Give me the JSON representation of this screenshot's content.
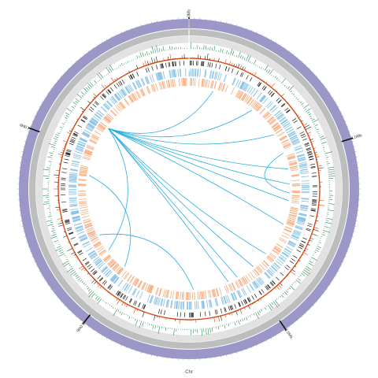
{
  "figure": {
    "type": "circos-genome-plot",
    "chromosome_label": "Chr",
    "mb_labels": [
      "0Mb",
      "1.0Mb",
      "2.0Mb",
      "3.0Mb",
      "4.0Mb"
    ],
    "mb_marks": [
      0,
      1.0,
      2.0,
      3.0,
      4.0
    ],
    "genome_length_mb": 4.95,
    "tracks": [
      {
        "name": "ideogram",
        "color": "#9b98c8"
      },
      {
        "name": "tick-ring",
        "color": "#bdbdbd"
      },
      {
        "name": "background-ring",
        "color": "#e2e2e2"
      },
      {
        "name": "gc-skew-histogram",
        "color": "#2e8b57"
      },
      {
        "name": "gc-content-histogram",
        "color": "#d94a12"
      },
      {
        "name": "rna-genes",
        "color": "#222222"
      },
      {
        "name": "cds-forward",
        "color": "#8cc4e6"
      },
      {
        "name": "cds-reverse",
        "color": "#f8b48a"
      }
    ],
    "links_color": "#29aee0",
    "links": [
      [
        4.22,
        0.19
      ],
      [
        4.22,
        0.53
      ],
      [
        4.22,
        0.79
      ],
      [
        4.22,
        1.08
      ],
      [
        4.22,
        1.2
      ],
      [
        4.22,
        1.33
      ],
      [
        4.22,
        1.52
      ],
      [
        4.22,
        1.79
      ],
      [
        4.22,
        1.93
      ],
      [
        4.22,
        2.08
      ],
      [
        4.22,
        2.16
      ],
      [
        4.22,
        3.2
      ],
      [
        1.27,
        0.95
      ],
      [
        3.34,
        2.44
      ],
      [
        3.02,
        3.82
      ]
    ]
  }
}
